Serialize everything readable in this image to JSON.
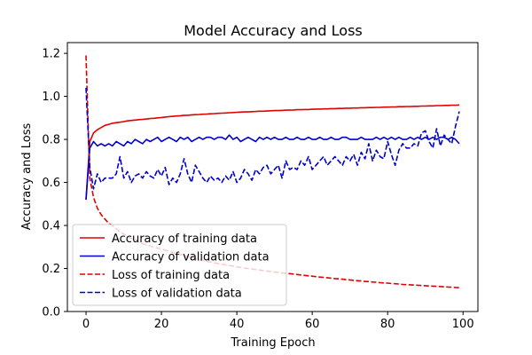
{
  "chart_data": {
    "type": "line",
    "title": "Model Accuracy and Loss",
    "xlabel": "Training Epoch",
    "ylabel": "Accuracy and Loss",
    "xlim": [
      -4.95,
      103.95
    ],
    "ylim": [
      0.0,
      1.25
    ],
    "xticks": [
      0,
      20,
      40,
      60,
      80,
      100
    ],
    "xtick_labels": [
      "0",
      "20",
      "40",
      "60",
      "80",
      "100"
    ],
    "yticks": [
      0.0,
      0.2,
      0.4,
      0.6,
      0.8,
      1.0,
      1.2
    ],
    "ytick_labels": [
      "0.0",
      "0.2",
      "0.4",
      "0.6",
      "0.8",
      "1.0",
      "1.2"
    ],
    "grid": false,
    "legend_position": "lower-left",
    "x": [
      0,
      1,
      2,
      3,
      4,
      5,
      6,
      7,
      8,
      9,
      10,
      11,
      12,
      13,
      14,
      15,
      16,
      17,
      18,
      19,
      20,
      21,
      22,
      23,
      24,
      25,
      26,
      27,
      28,
      29,
      30,
      31,
      32,
      33,
      34,
      35,
      36,
      37,
      38,
      39,
      40,
      41,
      42,
      43,
      44,
      45,
      46,
      47,
      48,
      49,
      50,
      51,
      52,
      53,
      54,
      55,
      56,
      57,
      58,
      59,
      60,
      61,
      62,
      63,
      64,
      65,
      66,
      67,
      68,
      69,
      70,
      71,
      72,
      73,
      74,
      75,
      76,
      77,
      78,
      79,
      80,
      81,
      82,
      83,
      84,
      85,
      86,
      87,
      88,
      89,
      90,
      91,
      92,
      93,
      94,
      95,
      96,
      97,
      98,
      99
    ],
    "series": [
      {
        "name": "Accuracy of training data",
        "color": "#e00000",
        "dash": "solid",
        "values": [
          0.52,
          0.79,
          0.83,
          0.845,
          0.855,
          0.865,
          0.87,
          0.875,
          0.878,
          0.88,
          0.883,
          0.886,
          0.888,
          0.89,
          0.892,
          0.893,
          0.895,
          0.897,
          0.898,
          0.9,
          0.902,
          0.904,
          0.906,
          0.907,
          0.909,
          0.91,
          0.912,
          0.912,
          0.914,
          0.915,
          0.916,
          0.917,
          0.918,
          0.919,
          0.92,
          0.921,
          0.922,
          0.923,
          0.924,
          0.925,
          0.926,
          0.927,
          0.928,
          0.928,
          0.929,
          0.93,
          0.931,
          0.931,
          0.932,
          0.933,
          0.934,
          0.934,
          0.935,
          0.936,
          0.936,
          0.937,
          0.938,
          0.938,
          0.939,
          0.939,
          0.94,
          0.941,
          0.941,
          0.942,
          0.942,
          0.943,
          0.943,
          0.944,
          0.944,
          0.945,
          0.945,
          0.946,
          0.946,
          0.947,
          0.947,
          0.948,
          0.948,
          0.949,
          0.949,
          0.95,
          0.95,
          0.951,
          0.951,
          0.952,
          0.952,
          0.953,
          0.953,
          0.954,
          0.954,
          0.955,
          0.955,
          0.956,
          0.956,
          0.957,
          0.957,
          0.958,
          0.958,
          0.959,
          0.959,
          0.96
        ]
      },
      {
        "name": "Accuracy of validation data",
        "color": "#0000cc",
        "dash": "solid",
        "values": [
          0.52,
          0.76,
          0.79,
          0.77,
          0.78,
          0.77,
          0.78,
          0.77,
          0.79,
          0.78,
          0.77,
          0.79,
          0.78,
          0.8,
          0.79,
          0.78,
          0.8,
          0.79,
          0.8,
          0.81,
          0.79,
          0.8,
          0.81,
          0.8,
          0.79,
          0.81,
          0.8,
          0.81,
          0.79,
          0.8,
          0.81,
          0.8,
          0.81,
          0.81,
          0.8,
          0.81,
          0.81,
          0.8,
          0.82,
          0.8,
          0.81,
          0.79,
          0.8,
          0.81,
          0.8,
          0.79,
          0.81,
          0.8,
          0.81,
          0.8,
          0.81,
          0.8,
          0.8,
          0.81,
          0.8,
          0.8,
          0.81,
          0.8,
          0.8,
          0.81,
          0.8,
          0.8,
          0.81,
          0.8,
          0.8,
          0.81,
          0.8,
          0.8,
          0.81,
          0.81,
          0.8,
          0.8,
          0.8,
          0.81,
          0.8,
          0.8,
          0.8,
          0.81,
          0.8,
          0.81,
          0.8,
          0.81,
          0.8,
          0.81,
          0.8,
          0.8,
          0.81,
          0.8,
          0.81,
          0.8,
          0.81,
          0.8,
          0.81,
          0.8,
          0.81,
          0.81,
          0.8,
          0.81,
          0.8,
          0.78
        ]
      },
      {
        "name": "Loss of training data",
        "color": "#e00000",
        "dash": "dashed",
        "values": [
          1.19,
          0.62,
          0.53,
          0.48,
          0.45,
          0.43,
          0.41,
          0.4,
          0.385,
          0.37,
          0.36,
          0.35,
          0.34,
          0.335,
          0.325,
          0.315,
          0.31,
          0.305,
          0.3,
          0.295,
          0.29,
          0.285,
          0.28,
          0.275,
          0.27,
          0.265,
          0.26,
          0.255,
          0.25,
          0.245,
          0.24,
          0.237,
          0.233,
          0.23,
          0.226,
          0.223,
          0.22,
          0.217,
          0.214,
          0.211,
          0.208,
          0.205,
          0.202,
          0.2,
          0.198,
          0.195,
          0.193,
          0.19,
          0.188,
          0.186,
          0.184,
          0.182,
          0.18,
          0.178,
          0.176,
          0.174,
          0.172,
          0.17,
          0.168,
          0.166,
          0.164,
          0.162,
          0.16,
          0.159,
          0.157,
          0.155,
          0.153,
          0.152,
          0.15,
          0.148,
          0.147,
          0.145,
          0.143,
          0.142,
          0.14,
          0.139,
          0.137,
          0.136,
          0.134,
          0.133,
          0.132,
          0.13,
          0.129,
          0.128,
          0.126,
          0.125,
          0.124,
          0.123,
          0.122,
          0.121,
          0.12,
          0.119,
          0.118,
          0.117,
          0.116,
          0.115,
          0.114,
          0.113,
          0.112,
          0.111
        ]
      },
      {
        "name": "Loss of validation data",
        "color": "#0000cc",
        "dash": "dashed",
        "values": [
          1.04,
          0.67,
          0.57,
          0.64,
          0.6,
          0.62,
          0.62,
          0.62,
          0.64,
          0.72,
          0.62,
          0.65,
          0.6,
          0.63,
          0.64,
          0.62,
          0.65,
          0.63,
          0.62,
          0.66,
          0.63,
          0.67,
          0.59,
          0.62,
          0.6,
          0.64,
          0.71,
          0.64,
          0.6,
          0.68,
          0.65,
          0.62,
          0.6,
          0.63,
          0.61,
          0.62,
          0.6,
          0.63,
          0.61,
          0.65,
          0.6,
          0.62,
          0.66,
          0.64,
          0.61,
          0.66,
          0.64,
          0.67,
          0.68,
          0.64,
          0.66,
          0.68,
          0.62,
          0.7,
          0.66,
          0.67,
          0.66,
          0.7,
          0.68,
          0.72,
          0.66,
          0.68,
          0.7,
          0.72,
          0.68,
          0.7,
          0.72,
          0.7,
          0.68,
          0.72,
          0.7,
          0.73,
          0.68,
          0.74,
          0.71,
          0.78,
          0.7,
          0.75,
          0.72,
          0.71,
          0.79,
          0.73,
          0.68,
          0.75,
          0.78,
          0.76,
          0.76,
          0.78,
          0.77,
          0.83,
          0.84,
          0.79,
          0.76,
          0.85,
          0.77,
          0.82,
          0.8,
          0.78,
          0.86,
          0.93
        ]
      }
    ]
  }
}
